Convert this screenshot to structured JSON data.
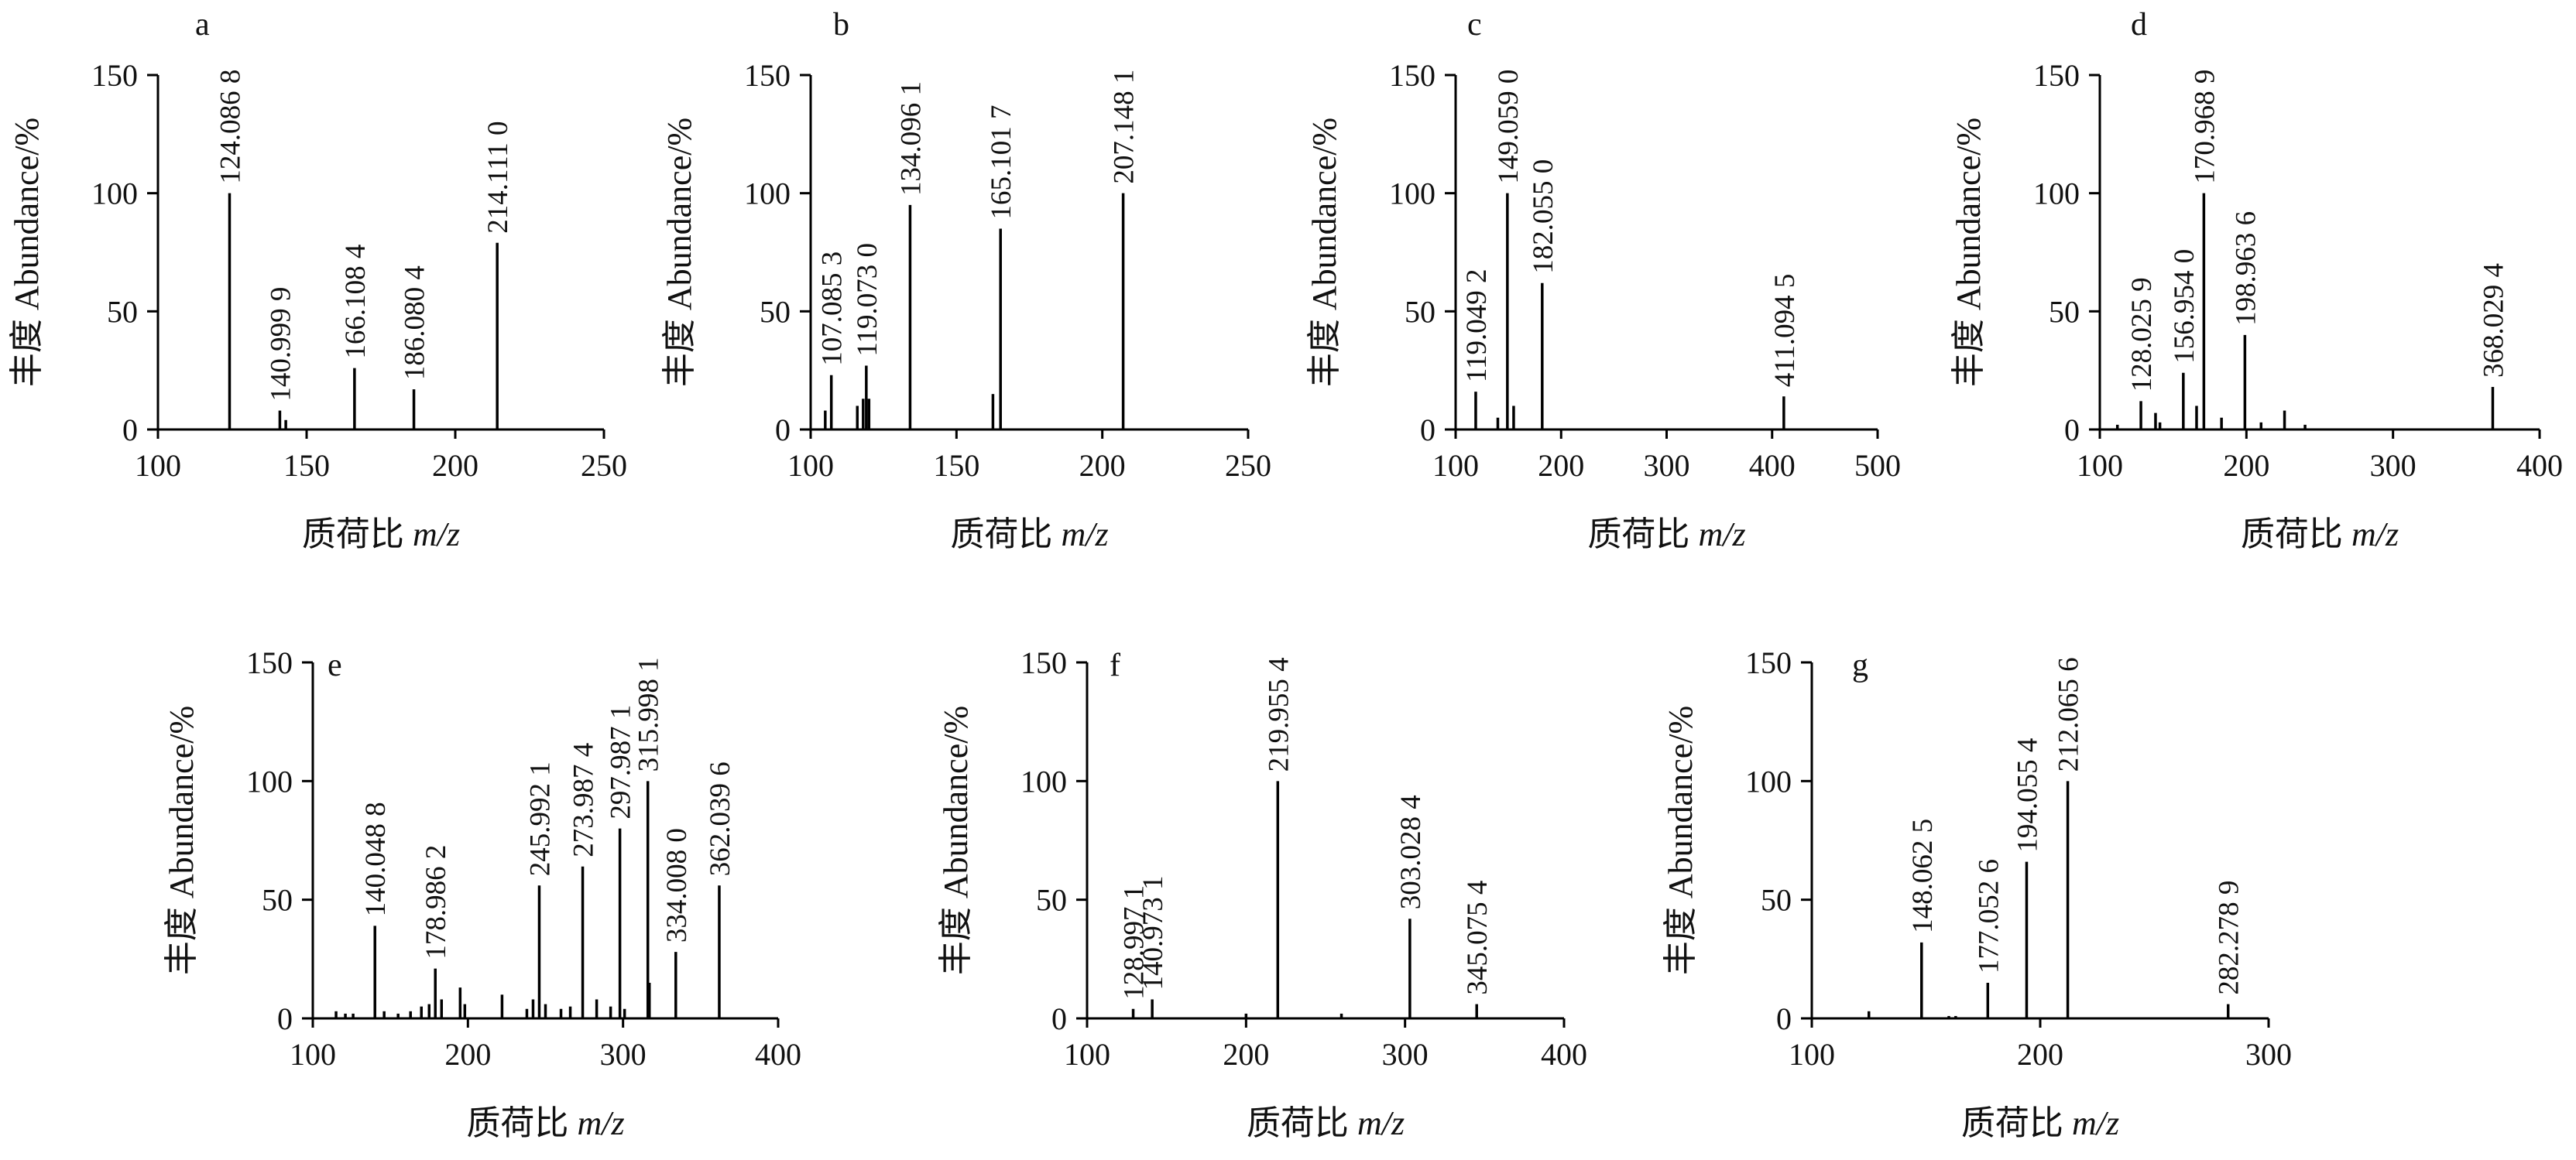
{
  "chart_data": [
    {
      "type": "bar",
      "panel": "a",
      "xlabel": "质荷比",
      "xunit": "m/z",
      "ylabel": "丰度 Abundance/%",
      "xlim": [
        100,
        250
      ],
      "ylim": [
        0,
        150
      ],
      "xticks": [
        100,
        150,
        200,
        250
      ],
      "yticks": [
        0,
        50,
        100,
        150
      ],
      "peaks": [
        {
          "mz": 124.0868,
          "y": 100,
          "label": "124.086 8"
        },
        {
          "mz": 140.9999,
          "y": 8,
          "label": "140.999 9"
        },
        {
          "mz": 143.0,
          "y": 4,
          "label": ""
        },
        {
          "mz": 166.1084,
          "y": 26,
          "label": "166.108 4"
        },
        {
          "mz": 186.0804,
          "y": 17,
          "label": "186.080 4"
        },
        {
          "mz": 214.111,
          "y": 79,
          "label": "214.111 0"
        }
      ]
    },
    {
      "type": "bar",
      "panel": "b",
      "xlabel": "质荷比",
      "xunit": "m/z",
      "ylabel": "丰度 Abundance/%",
      "xlim": [
        100,
        250
      ],
      "ylim": [
        0,
        150
      ],
      "xticks": [
        100,
        150,
        200,
        250
      ],
      "yticks": [
        0,
        50,
        100,
        150
      ],
      "peaks": [
        {
          "mz": 105.0,
          "y": 8,
          "label": ""
        },
        {
          "mz": 107.0853,
          "y": 23,
          "label": "107.085 3"
        },
        {
          "mz": 116.0,
          "y": 10,
          "label": ""
        },
        {
          "mz": 118.0,
          "y": 13,
          "label": ""
        },
        {
          "mz": 119.073,
          "y": 27,
          "label": "119.073 0"
        },
        {
          "mz": 120.0,
          "y": 13,
          "label": ""
        },
        {
          "mz": 134.0961,
          "y": 95,
          "label": "134.096 1"
        },
        {
          "mz": 162.5,
          "y": 15,
          "label": ""
        },
        {
          "mz": 165.1017,
          "y": 85,
          "label": "165.101 7"
        },
        {
          "mz": 207.1481,
          "y": 100,
          "label": "207.148 1"
        }
      ]
    },
    {
      "type": "bar",
      "panel": "c",
      "xlabel": "质荷比",
      "xunit": "m/z",
      "ylabel": "丰度 Abundance/%",
      "xlim": [
        100,
        500
      ],
      "ylim": [
        0,
        150
      ],
      "xticks": [
        100,
        200,
        300,
        400,
        500
      ],
      "yticks": [
        0,
        50,
        100,
        150
      ],
      "peaks": [
        {
          "mz": 119.0492,
          "y": 16,
          "label": "119.049 2"
        },
        {
          "mz": 140.0,
          "y": 5,
          "label": ""
        },
        {
          "mz": 149.059,
          "y": 100,
          "label": "149.059 0"
        },
        {
          "mz": 155.0,
          "y": 10,
          "label": ""
        },
        {
          "mz": 182.055,
          "y": 62,
          "label": "182.055 0"
        },
        {
          "mz": 411.0945,
          "y": 14,
          "label": "411.094 5"
        }
      ]
    },
    {
      "type": "bar",
      "panel": "d",
      "xlabel": "质荷比",
      "xunit": "m/z",
      "ylabel": "丰度 Abundance/%",
      "xlim": [
        100,
        400
      ],
      "ylim": [
        0,
        150
      ],
      "xticks": [
        100,
        200,
        300,
        400
      ],
      "yticks": [
        0,
        50,
        100,
        150
      ],
      "peaks": [
        {
          "mz": 112.0,
          "y": 2,
          "label": ""
        },
        {
          "mz": 128.0259,
          "y": 12,
          "label": "128.025 9"
        },
        {
          "mz": 138.0,
          "y": 7,
          "label": ""
        },
        {
          "mz": 141.0,
          "y": 3,
          "label": ""
        },
        {
          "mz": 156.954,
          "y": 24,
          "label": "156.954 0"
        },
        {
          "mz": 166.0,
          "y": 10,
          "label": ""
        },
        {
          "mz": 170.9689,
          "y": 100,
          "label": "170.968 9"
        },
        {
          "mz": 183.0,
          "y": 5,
          "label": ""
        },
        {
          "mz": 198.9636,
          "y": 40,
          "label": "198.963 6"
        },
        {
          "mz": 210.0,
          "y": 3,
          "label": ""
        },
        {
          "mz": 226.0,
          "y": 8,
          "label": ""
        },
        {
          "mz": 240.0,
          "y": 2,
          "label": ""
        },
        {
          "mz": 368.0294,
          "y": 18,
          "label": "368.029 4"
        }
      ]
    },
    {
      "type": "bar",
      "panel": "e",
      "xlabel": "质荷比",
      "xunit": "m/z",
      "ylabel": "丰度 Abundance/%",
      "xlim": [
        100,
        400
      ],
      "ylim": [
        0,
        150
      ],
      "xticks": [
        100,
        200,
        300,
        400
      ],
      "yticks": [
        0,
        50,
        100,
        150
      ],
      "peaks": [
        {
          "mz": 115.0,
          "y": 3,
          "label": ""
        },
        {
          "mz": 121.0,
          "y": 2,
          "label": ""
        },
        {
          "mz": 126.0,
          "y": 2,
          "label": ""
        },
        {
          "mz": 140.0488,
          "y": 39,
          "label": "140.048 8"
        },
        {
          "mz": 146.0,
          "y": 3,
          "label": ""
        },
        {
          "mz": 155.0,
          "y": 2,
          "label": ""
        },
        {
          "mz": 163.0,
          "y": 3,
          "label": ""
        },
        {
          "mz": 170.0,
          "y": 5,
          "label": ""
        },
        {
          "mz": 175.0,
          "y": 6,
          "label": ""
        },
        {
          "mz": 178.9862,
          "y": 21,
          "label": "178.986 2"
        },
        {
          "mz": 183.0,
          "y": 8,
          "label": ""
        },
        {
          "mz": 195.0,
          "y": 13,
          "label": ""
        },
        {
          "mz": 198.0,
          "y": 6,
          "label": ""
        },
        {
          "mz": 222.0,
          "y": 10,
          "label": ""
        },
        {
          "mz": 238.0,
          "y": 4,
          "label": ""
        },
        {
          "mz": 242.0,
          "y": 8,
          "label": ""
        },
        {
          "mz": 245.9921,
          "y": 56,
          "label": "245.992 1"
        },
        {
          "mz": 250.0,
          "y": 6,
          "label": ""
        },
        {
          "mz": 260.0,
          "y": 4,
          "label": ""
        },
        {
          "mz": 266.0,
          "y": 5,
          "label": ""
        },
        {
          "mz": 273.9874,
          "y": 64,
          "label": "273.987 4"
        },
        {
          "mz": 283.0,
          "y": 8,
          "label": ""
        },
        {
          "mz": 292.0,
          "y": 5,
          "label": ""
        },
        {
          "mz": 297.9871,
          "y": 80,
          "label": "297.987 1"
        },
        {
          "mz": 301.0,
          "y": 4,
          "label": ""
        },
        {
          "mz": 315.9981,
          "y": 100,
          "label": "315.998 1"
        },
        {
          "mz": 317.0,
          "y": 15,
          "label": ""
        },
        {
          "mz": 334.008,
          "y": 28,
          "label": "334.008 0"
        },
        {
          "mz": 362.0396,
          "y": 56,
          "label": "362.039 6"
        }
      ]
    },
    {
      "type": "bar",
      "panel": "f",
      "xlabel": "质荷比",
      "xunit": "m/z",
      "ylabel": "丰度 Abundance/%",
      "xlim": [
        100,
        400
      ],
      "ylim": [
        0,
        150
      ],
      "xticks": [
        100,
        200,
        300,
        400
      ],
      "yticks": [
        0,
        50,
        100,
        150
      ],
      "peaks": [
        {
          "mz": 128.9971,
          "y": 4,
          "label": "128.997 1"
        },
        {
          "mz": 140.9731,
          "y": 8,
          "label": "140.973 1"
        },
        {
          "mz": 200.0,
          "y": 2,
          "label": ""
        },
        {
          "mz": 219.9554,
          "y": 100,
          "label": "219.955 4"
        },
        {
          "mz": 260.0,
          "y": 2,
          "label": ""
        },
        {
          "mz": 303.0284,
          "y": 42,
          "label": "303.028 4"
        },
        {
          "mz": 345.0754,
          "y": 6,
          "label": "345.075 4"
        }
      ]
    },
    {
      "type": "bar",
      "panel": "g",
      "xlabel": "质荷比",
      "xunit": "m/z",
      "ylabel": "丰度 Abundance/%",
      "xlim": [
        100,
        300
      ],
      "ylim": [
        0,
        150
      ],
      "xticks": [
        100,
        200,
        300
      ],
      "yticks": [
        0,
        50,
        100,
        150
      ],
      "peaks": [
        {
          "mz": 125.0,
          "y": 3,
          "label": ""
        },
        {
          "mz": 148.0625,
          "y": 32,
          "label": "148.062 5"
        },
        {
          "mz": 160.0,
          "y": 1,
          "label": ""
        },
        {
          "mz": 163.0,
          "y": 1,
          "label": ""
        },
        {
          "mz": 177.0526,
          "y": 15,
          "label": "177.052 6"
        },
        {
          "mz": 194.0554,
          "y": 66,
          "label": "194.055 4"
        },
        {
          "mz": 212.0656,
          "y": 100,
          "label": "212.065 6"
        },
        {
          "mz": 282.2789,
          "y": 6,
          "label": "282.278 9"
        }
      ]
    }
  ]
}
